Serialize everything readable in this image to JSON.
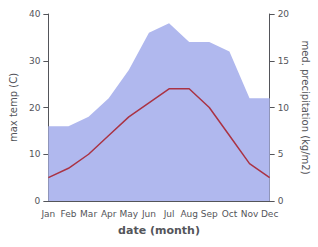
{
  "chart_data": {
    "type": "line",
    "xlabel": "date (month)",
    "ylabel": "max temp (C)",
    "y2label": "med. precipitation (kg/m2)",
    "categories": [
      "Jan",
      "Feb",
      "Mar",
      "Apr",
      "May",
      "Jun",
      "Jul",
      "Aug",
      "Sep",
      "Oct",
      "Nov",
      "Dec"
    ],
    "series": [
      {
        "type": "area",
        "axis": "y2",
        "color": "#b0b8ee",
        "values": [
          8,
          8,
          9,
          11,
          14,
          18,
          19,
          17,
          17,
          16,
          11,
          11
        ]
      },
      {
        "type": "line",
        "color": "#aa3344",
        "values": [
          5,
          7,
          10,
          14,
          18,
          21,
          24,
          24,
          20,
          14,
          8,
          5
        ]
      }
    ],
    "ylim": [
      0,
      40
    ],
    "yticks": [
      0,
      10,
      20,
      30,
      40
    ],
    "y2lim": [
      0,
      20
    ],
    "y2ticks": [
      0,
      5,
      10,
      15,
      20
    ],
    "grid": false
  }
}
